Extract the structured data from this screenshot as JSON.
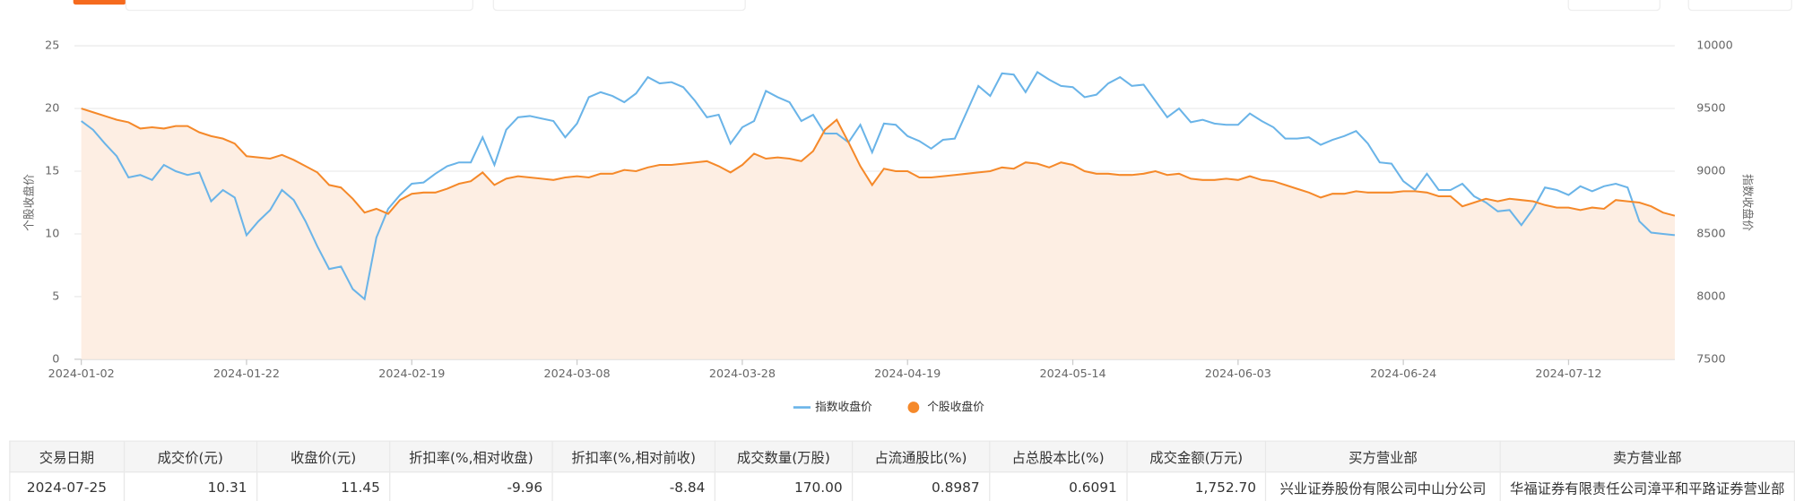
{
  "chart_data": {
    "type": "line",
    "categories": [
      "2024-01-02",
      null,
      null,
      null,
      null,
      null,
      null,
      null,
      null,
      null,
      null,
      null,
      null,
      null,
      "2024-01-22",
      null,
      null,
      null,
      null,
      null,
      null,
      null,
      null,
      null,
      null,
      null,
      null,
      null,
      "2024-02-19",
      null,
      null,
      null,
      null,
      null,
      null,
      null,
      null,
      null,
      null,
      null,
      null,
      null,
      "2024-03-08",
      null,
      null,
      null,
      null,
      null,
      null,
      null,
      null,
      null,
      null,
      null,
      null,
      null,
      "2024-03-28",
      null,
      null,
      null,
      null,
      null,
      null,
      null,
      null,
      null,
      null,
      null,
      null,
      null,
      "2024-04-19",
      null,
      null,
      null,
      null,
      null,
      null,
      null,
      null,
      null,
      null,
      null,
      null,
      null,
      "2024-05-14",
      null,
      null,
      null,
      null,
      null,
      null,
      null,
      null,
      null,
      null,
      null,
      null,
      null,
      "2024-06-03",
      null,
      null,
      null,
      null,
      null,
      null,
      null,
      null,
      null,
      null,
      null,
      null,
      null,
      "2024-06-24",
      null,
      null,
      null,
      null,
      null,
      null,
      null,
      null,
      null,
      null,
      null,
      null,
      null,
      "2024-07-12",
      null,
      null,
      null,
      null,
      null,
      null,
      null,
      null,
      null
    ],
    "series": [
      {
        "name": "指数收盘价",
        "color": "#6ab4e8",
        "axis": "y2",
        "values": [
          9400,
          9330,
          9220,
          9120,
          8950,
          8970,
          8930,
          9050,
          9000,
          8970,
          8990,
          8760,
          8850,
          8790,
          8490,
          8600,
          8690,
          8850,
          8770,
          8600,
          8400,
          8220,
          8240,
          8060,
          7980,
          8470,
          8700,
          8810,
          8900,
          8910,
          8980,
          9040,
          9070,
          9070,
          9270,
          9050,
          9330,
          9430,
          9440,
          9420,
          9400,
          9270,
          9380,
          9590,
          9630,
          9600,
          9550,
          9620,
          9750,
          9700,
          9710,
          9670,
          9560,
          9430,
          9450,
          9220,
          9350,
          9400,
          9640,
          9590,
          9550,
          9400,
          9450,
          9300,
          9300,
          9230,
          9370,
          9150,
          9380,
          9370,
          9280,
          9240,
          9180,
          9250,
          9260,
          9470,
          9680,
          9600,
          9780,
          9770,
          9630,
          9790,
          9730,
          9680,
          9670,
          9590,
          9610,
          9700,
          9750,
          9680,
          9690,
          9560,
          9430,
          9500,
          9390,
          9410,
          9380,
          9370,
          9370,
          9460,
          9400,
          9350,
          9260,
          9260,
          9270,
          9210,
          9250,
          9280,
          9320,
          9220,
          9070,
          9060,
          8920,
          8850,
          8980,
          8850,
          8850,
          8900,
          8800,
          8750,
          8680,
          8690,
          8570,
          8700,
          8870,
          8850,
          8810,
          8880,
          8840,
          8880,
          8900,
          8870,
          8600,
          8510,
          8500,
          8490
        ]
      },
      {
        "name": "个股收盘价",
        "color": "#f5892a",
        "area_color": "#fdeee3",
        "values": [
          20.0,
          19.7,
          19.4,
          19.1,
          18.9,
          18.4,
          18.5,
          18.4,
          18.6,
          18.6,
          18.1,
          17.8,
          17.6,
          17.2,
          16.2,
          16.1,
          16.0,
          16.3,
          15.9,
          15.4,
          14.9,
          13.9,
          13.7,
          12.8,
          11.7,
          12.0,
          11.6,
          12.7,
          13.2,
          13.3,
          13.3,
          13.6,
          14.0,
          14.2,
          14.9,
          13.9,
          14.4,
          14.6,
          14.5,
          14.4,
          14.3,
          14.5,
          14.6,
          14.5,
          14.8,
          14.8,
          15.1,
          15.0,
          15.3,
          15.5,
          15.5,
          15.6,
          15.7,
          15.8,
          15.4,
          14.9,
          15.5,
          16.4,
          16.0,
          16.1,
          16.0,
          15.8,
          16.6,
          18.3,
          19.1,
          17.3,
          15.4,
          13.9,
          15.2,
          15.0,
          15.0,
          14.5,
          14.5,
          14.6,
          14.7,
          14.8,
          14.9,
          15.0,
          15.3,
          15.2,
          15.7,
          15.6,
          15.3,
          15.7,
          15.5,
          15.0,
          14.8,
          14.8,
          14.7,
          14.7,
          14.8,
          15.0,
          14.7,
          14.8,
          14.4,
          14.3,
          14.3,
          14.4,
          14.3,
          14.6,
          14.3,
          14.2,
          13.9,
          13.6,
          13.3,
          12.9,
          13.2,
          13.2,
          13.4,
          13.3,
          13.3,
          13.3,
          13.4,
          13.4,
          13.3,
          13.0,
          13.0,
          12.2,
          12.5,
          12.8,
          12.6,
          12.8,
          12.7,
          12.6,
          12.3,
          12.1,
          12.1,
          11.9,
          12.1,
          12.0,
          12.7,
          12.6,
          12.5,
          12.2,
          11.7,
          11.45
        ]
      }
    ],
    "ylabel": "个股收盘价",
    "y2label": "指数收盘价",
    "ylim": [
      0,
      25
    ],
    "yticks": [
      0,
      5,
      10,
      15,
      20,
      25
    ],
    "y2lim": [
      7500,
      10000
    ],
    "y2ticks": [
      7500,
      8000,
      8500,
      9000,
      9500,
      10000
    ],
    "grid": true,
    "legend": "bottom"
  },
  "table": {
    "columns": [
      "交易日期",
      "成交价(元)",
      "收盘价(元)",
      "折扣率(%,相对收盘)",
      "折扣率(%,相对前收)",
      "成交数量(万股)",
      "占流通股比(%)",
      "占总股本比(%)",
      "成交金额(万元)",
      "买方营业部",
      "卖方营业部"
    ],
    "rows": [
      [
        "2024-07-25",
        "10.31",
        "11.45",
        "-9.96",
        "-8.84",
        "170.00",
        "0.8987",
        "0.6091",
        "1,752.70",
        "兴业证券股份有限公司中山分公司",
        "华福证券有限责任公司漳平和平路证券营业部"
      ]
    ]
  }
}
